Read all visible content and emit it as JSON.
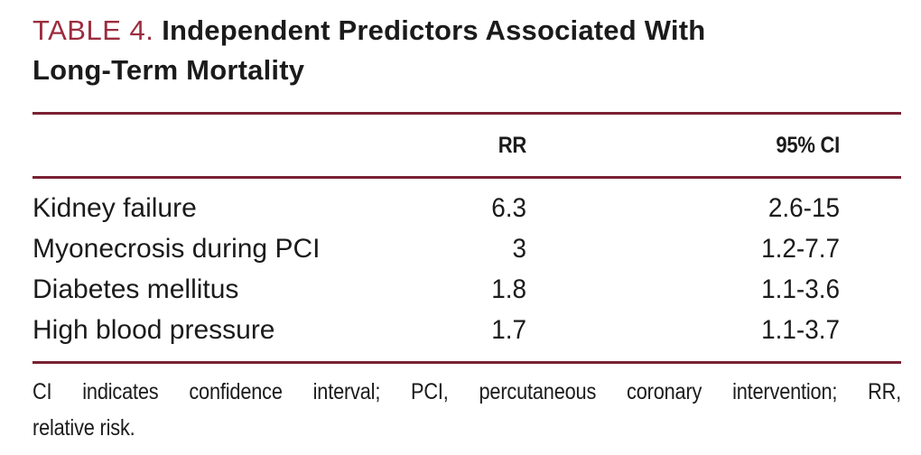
{
  "table": {
    "label": "TABLE 4.",
    "title_line1": "Independent Predictors Associated With",
    "title_line2": "Long-Term Mortality",
    "columns": {
      "rr": "RR",
      "ci": "95% CI"
    },
    "rows": [
      {
        "predictor": "Kidney failure",
        "rr": "6.3",
        "ci": "2.6-15"
      },
      {
        "predictor": "Myonecrosis during PCI",
        "rr": "3",
        "ci": "1.2-7.7"
      },
      {
        "predictor": "Diabetes mellitus",
        "rr": "1.8",
        "ci": "1.1-3.6"
      },
      {
        "predictor": "High blood pressure",
        "rr": "1.7",
        "ci": "1.1-3.7"
      }
    ],
    "footnote_line1": "CI indicates confidence interval; PCI, percutaneous coronary intervention; RR,",
    "footnote_line2": "relative risk.",
    "colors": {
      "label_maroon": "#9c2c3e",
      "rule_maroon": "#7a2133",
      "text_black": "#1b1b1b",
      "background": "#ffffff"
    }
  }
}
